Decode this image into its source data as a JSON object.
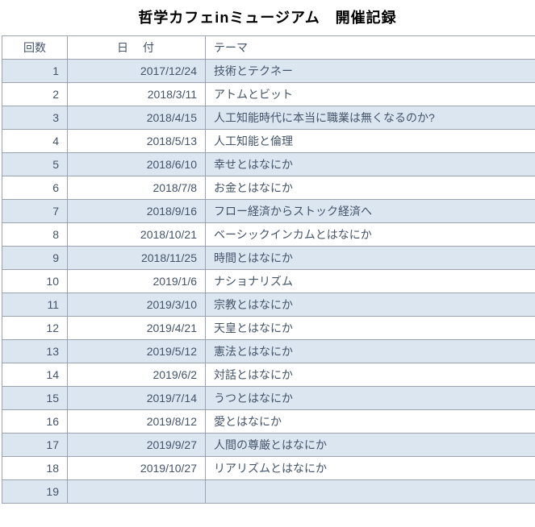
{
  "title": "哲学カフェinミュージアム　開催記録",
  "colors": {
    "band_fill": "#dce6f1",
    "table_text": "#44546a",
    "border": "#9aa3af",
    "title_text": "#000000"
  },
  "table": {
    "headers": [
      "回数",
      "日　付",
      "テーマ"
    ],
    "rows": [
      [
        "1",
        "2017/12/24",
        "技術とテクネー"
      ],
      [
        "2",
        "2018/3/11",
        "アトムとビット"
      ],
      [
        "3",
        "2018/4/15",
        "人工知能時代に本当に職業は無くなるのか?"
      ],
      [
        "4",
        "2018/5/13",
        "人工知能と倫理"
      ],
      [
        "5",
        "2018/6/10",
        "幸せとはなにか"
      ],
      [
        "6",
        "2018/7/8",
        "お金とはなにか"
      ],
      [
        "7",
        "2018/9/16",
        "フロー経済からストック経済へ"
      ],
      [
        "8",
        "2018/10/21",
        "ベーシックインカムとはなにか"
      ],
      [
        "9",
        "2018/11/25",
        "時間とはなにか"
      ],
      [
        "10",
        "2019/1/6",
        "ナショナリズム"
      ],
      [
        "11",
        "2019/3/10",
        "宗教とはなにか"
      ],
      [
        "12",
        "2019/4/21",
        "天皇とはなにか"
      ],
      [
        "13",
        "2019/5/12",
        "憲法とはなにか"
      ],
      [
        "14",
        "2019/6/2",
        "対話とはなにか"
      ],
      [
        "15",
        "2019/7/14",
        "うつとはなにか"
      ],
      [
        "16",
        "2019/8/12",
        "愛とはなにか"
      ],
      [
        "17",
        "2019/9/27",
        "人間の尊厳とはなにか"
      ],
      [
        "18",
        "2019/10/27",
        "リアリズムとはなにか"
      ],
      [
        "19",
        "",
        ""
      ]
    ]
  }
}
